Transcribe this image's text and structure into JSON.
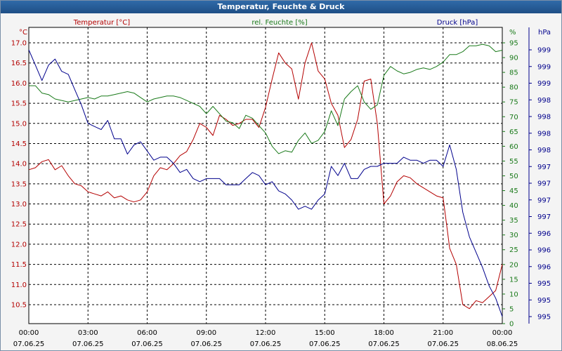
{
  "window": {
    "title": "Temperatur, Feuchte & Druck"
  },
  "colors": {
    "temperature": "#b40000",
    "humidity": "#1a7a1a",
    "pressure": "#00008c",
    "grid": "#000000",
    "plot_background": "#ffffff"
  },
  "chart_data": {
    "type": "line",
    "title": "Temperatur, Feuchte & Druck",
    "grid": true,
    "x": {
      "type": "time",
      "range": [
        "07.06.25 00:00",
        "08.06.25 00:00"
      ],
      "ticks": [
        {
          "time": "00:00",
          "date": "07.06.25"
        },
        {
          "time": "03:00",
          "date": "07.06.25"
        },
        {
          "time": "06:00",
          "date": "07.06.25"
        },
        {
          "time": "09:00",
          "date": "07.06.25"
        },
        {
          "time": "12:00",
          "date": "07.06.25"
        },
        {
          "time": "15:00",
          "date": "07.06.25"
        },
        {
          "time": "18:00",
          "date": "07.06.25"
        },
        {
          "time": "21:00",
          "date": "07.06.25"
        },
        {
          "time": "00:00",
          "date": "08.06.25"
        }
      ]
    },
    "axes": {
      "temperature": {
        "unit": "°C",
        "ylim": [
          10.2,
          17.2
        ],
        "ticks": [
          "17.0",
          "16.5",
          "16.0",
          "15.5",
          "15.0",
          "14.5",
          "14.0",
          "13.5",
          "13.0",
          "12.5",
          "12.0",
          "11.5",
          "11.0",
          "10.5"
        ]
      },
      "humidity": {
        "unit": "%",
        "ylim": [
          0,
          96
        ],
        "ticks": [
          "95",
          "90",
          "85",
          "80",
          "75",
          "70",
          "65",
          "60",
          "55",
          "50",
          "45",
          "40",
          "35",
          "30",
          "25",
          "20",
          "15",
          "10",
          "5",
          "0"
        ]
      },
      "pressure": {
        "unit": "hPa",
        "ticks": [
          "999",
          "999",
          "999",
          "998",
          "998",
          "998",
          "998",
          "997",
          "997",
          "997",
          "997",
          "996",
          "996",
          "996",
          "995",
          "995",
          "995"
        ]
      }
    },
    "series": [
      {
        "name": "Temperatur [°C]",
        "axis": "temperature",
        "x": [
          "00:00",
          "00:20",
          "00:40",
          "01:00",
          "01:20",
          "01:40",
          "02:00",
          "02:20",
          "02:40",
          "03:00",
          "03:20",
          "03:40",
          "04:00",
          "04:20",
          "04:40",
          "05:00",
          "05:20",
          "05:40",
          "06:00",
          "06:20",
          "06:40",
          "07:00",
          "07:20",
          "07:40",
          "08:00",
          "08:20",
          "08:40",
          "09:00",
          "09:20",
          "09:40",
          "10:00",
          "10:20",
          "10:40",
          "11:00",
          "11:20",
          "11:40",
          "12:00",
          "12:20",
          "12:40",
          "13:00",
          "13:20",
          "13:40",
          "14:00",
          "14:20",
          "14:40",
          "15:00",
          "15:20",
          "15:40",
          "16:00",
          "16:20",
          "16:40",
          "17:00",
          "17:20",
          "17:40",
          "18:00",
          "18:20",
          "18:40",
          "19:00",
          "19:20",
          "19:40",
          "20:00",
          "20:20",
          "20:40",
          "21:00",
          "21:20",
          "21:40",
          "22:00",
          "22:20",
          "22:40",
          "23:00",
          "23:20",
          "23:40",
          "24:00"
        ],
        "values": [
          13.85,
          13.9,
          14.05,
          14.1,
          13.85,
          13.95,
          13.7,
          13.5,
          13.45,
          13.3,
          13.25,
          13.2,
          13.3,
          13.15,
          13.2,
          13.1,
          13.05,
          13.1,
          13.3,
          13.7,
          13.9,
          13.85,
          14.0,
          14.2,
          14.3,
          14.6,
          15.0,
          14.9,
          14.7,
          15.2,
          15.1,
          14.95,
          15.0,
          15.1,
          15.1,
          14.9,
          15.4,
          16.1,
          16.75,
          16.5,
          16.35,
          15.6,
          16.5,
          17.0,
          16.3,
          16.1,
          15.5,
          15.2,
          14.4,
          14.6,
          15.1,
          16.05,
          16.1,
          15.0,
          13.0,
          13.2,
          13.55,
          13.7,
          13.65,
          13.5,
          13.4,
          13.3,
          13.2,
          13.15,
          11.9,
          11.5,
          10.5,
          10.4,
          10.6,
          10.55,
          10.7,
          10.85,
          11.5
        ],
        "color": "#b40000"
      },
      {
        "name": "rel. Feuchte [%]",
        "axis": "humidity",
        "x": [
          "00:00",
          "00:20",
          "00:40",
          "01:00",
          "01:20",
          "01:40",
          "02:00",
          "02:20",
          "02:40",
          "03:00",
          "03:20",
          "03:40",
          "04:00",
          "04:20",
          "04:40",
          "05:00",
          "05:20",
          "05:40",
          "06:00",
          "06:20",
          "06:40",
          "07:00",
          "07:20",
          "07:40",
          "08:00",
          "08:20",
          "08:40",
          "09:00",
          "09:20",
          "09:40",
          "10:00",
          "10:20",
          "10:40",
          "11:00",
          "11:20",
          "11:40",
          "12:00",
          "12:20",
          "12:40",
          "13:00",
          "13:20",
          "13:40",
          "14:00",
          "14:20",
          "14:40",
          "15:00",
          "15:20",
          "15:40",
          "16:00",
          "16:20",
          "16:40",
          "17:00",
          "17:20",
          "17:40",
          "18:00",
          "18:20",
          "18:40",
          "19:00",
          "19:20",
          "19:40",
          "20:00",
          "20:20",
          "20:40",
          "21:00",
          "21:20",
          "21:40",
          "22:00",
          "22:20",
          "22:40",
          "23:00",
          "23:20",
          "23:40",
          "24:00"
        ],
        "values": [
          80.5,
          80.5,
          78.0,
          77.5,
          76.0,
          75.5,
          75.0,
          75.5,
          76.0,
          76.5,
          76.0,
          77.0,
          77.0,
          77.5,
          78.0,
          78.5,
          78.0,
          76.5,
          75.0,
          76.0,
          76.5,
          77.0,
          77.0,
          76.5,
          75.5,
          74.5,
          73.5,
          71.0,
          73.5,
          71.0,
          68.5,
          68.0,
          66.0,
          70.5,
          69.5,
          67.0,
          64.5,
          60.0,
          57.5,
          58.5,
          58.0,
          62.0,
          64.5,
          61.0,
          62.0,
          65.0,
          72.0,
          67.0,
          76.0,
          78.5,
          80.5,
          75.0,
          72.5,
          74.0,
          84.0,
          87.0,
          85.5,
          84.5,
          85.0,
          86.0,
          86.5,
          86.0,
          87.0,
          88.5,
          91.0,
          91.0,
          92.0,
          94.0,
          94.0,
          94.5,
          94.0,
          92.0,
          92.5
        ],
        "color": "#1a7a1a"
      },
      {
        "name": "Druck [hPa]",
        "axis": "pressure",
        "x": [
          "00:00",
          "00:20",
          "00:40",
          "01:00",
          "01:20",
          "01:40",
          "02:00",
          "02:20",
          "02:40",
          "03:00",
          "03:20",
          "03:40",
          "04:00",
          "04:20",
          "04:40",
          "05:00",
          "05:20",
          "05:40",
          "06:00",
          "06:20",
          "06:40",
          "07:00",
          "07:20",
          "07:40",
          "08:00",
          "08:20",
          "08:40",
          "09:00",
          "09:20",
          "09:40",
          "10:00",
          "10:20",
          "10:40",
          "11:00",
          "11:20",
          "11:40",
          "12:00",
          "12:20",
          "12:40",
          "13:00",
          "13:20",
          "13:40",
          "14:00",
          "14:20",
          "14:40",
          "15:00",
          "15:20",
          "15:40",
          "16:00",
          "16:20",
          "16:40",
          "17:00",
          "17:20",
          "17:40",
          "18:00",
          "18:20",
          "18:40",
          "19:00",
          "19:20",
          "19:40",
          "20:00",
          "20:20",
          "20:40",
          "21:00",
          "21:20",
          "21:40",
          "22:00",
          "22:20",
          "22:40",
          "23:00",
          "23:20",
          "23:40",
          "24:00"
        ],
        "values": [
          999.05,
          998.8,
          998.55,
          998.8,
          998.9,
          998.7,
          998.65,
          998.4,
          998.15,
          997.85,
          997.8,
          997.75,
          997.9,
          997.6,
          997.6,
          997.35,
          997.5,
          997.55,
          997.4,
          997.25,
          997.3,
          997.3,
          997.2,
          997.05,
          997.1,
          996.95,
          996.9,
          996.95,
          996.95,
          996.95,
          996.85,
          996.85,
          996.85,
          996.95,
          997.05,
          997.0,
          996.85,
          996.9,
          996.75,
          996.7,
          996.6,
          996.45,
          996.5,
          996.45,
          996.6,
          996.7,
          997.15,
          997.0,
          997.2,
          996.95,
          996.95,
          997.1,
          997.15,
          997.15,
          997.2,
          997.2,
          997.2,
          997.3,
          997.25,
          997.25,
          997.2,
          997.25,
          997.25,
          997.15,
          997.5,
          997.1,
          996.4,
          996.0,
          995.75,
          995.5,
          995.2,
          995.0,
          994.7
        ],
        "color": "#00008c"
      }
    ]
  }
}
